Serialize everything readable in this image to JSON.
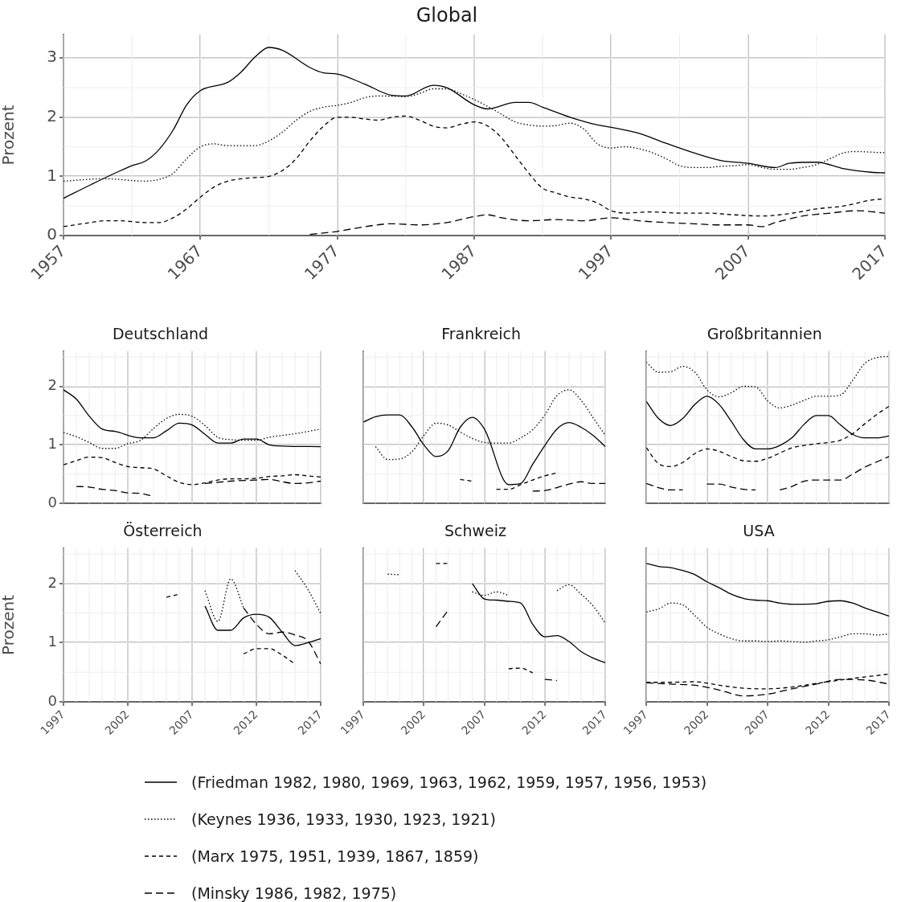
{
  "chart_data": [
    {
      "type": "line",
      "title": "Global",
      "ylabel": "Prozent",
      "xlim": [
        1957,
        2017
      ],
      "xticks": [
        1957,
        1967,
        1977,
        1987,
        1997,
        2007,
        2017
      ],
      "ylim": [
        0,
        3.4
      ],
      "yticks": [
        0,
        1,
        2,
        3
      ],
      "grid": true,
      "legend": "bottom",
      "series": [
        {
          "name": "(Friedman 1982, 1980, 1969, 1963, 1962, 1959, 1957, 1956, 1953)",
          "color": "#000000",
          "line_style": "solid",
          "x": [
            1957,
            1959,
            1961,
            1962,
            1963,
            1964,
            1965,
            1966,
            1967,
            1969,
            1970,
            1971,
            1972,
            1973,
            1975,
            1976,
            1977,
            1979,
            1981,
            1982,
            1984,
            1985,
            1987,
            1988,
            1990,
            1991,
            1992,
            1994,
            1996,
            1997,
            1999,
            2001,
            2003,
            2005,
            2007,
            2009,
            2010,
            2012,
            2014,
            2016,
            2017
          ],
          "values": [
            0.63,
            0.86,
            1.08,
            1.18,
            1.26,
            1.46,
            1.78,
            2.21,
            2.45,
            2.59,
            2.77,
            3.02,
            3.18,
            3.13,
            2.84,
            2.75,
            2.73,
            2.56,
            2.37,
            2.36,
            2.54,
            2.5,
            2.21,
            2.14,
            2.25,
            2.25,
            2.17,
            2.0,
            1.87,
            1.83,
            1.73,
            1.56,
            1.4,
            1.27,
            1.22,
            1.15,
            1.22,
            1.24,
            1.13,
            1.07,
            1.06
          ]
        },
        {
          "name": "(Keynes 1936, 1933, 1930, 1923, 1921)",
          "color": "#000000",
          "line_style": "dotted",
          "x": [
            1957,
            1960,
            1963,
            1964,
            1965,
            1966,
            1967,
            1968,
            1969,
            1971,
            1972,
            1973,
            1974,
            1975,
            1976,
            1977,
            1978,
            1979,
            1980,
            1982,
            1983,
            1984,
            1985,
            1986,
            1987,
            1988,
            1989,
            1990,
            1991,
            1992,
            1993,
            1994,
            1995,
            1996,
            1997,
            1998,
            1999,
            2000,
            2001,
            2002,
            2003,
            2004,
            2005,
            2006,
            2007,
            2008,
            2009,
            2010,
            2011,
            2012,
            2013,
            2014,
            2015,
            2016,
            2017
          ],
          "values": [
            0.92,
            0.96,
            0.92,
            0.95,
            1.05,
            1.3,
            1.5,
            1.55,
            1.52,
            1.52,
            1.6,
            1.75,
            1.95,
            2.1,
            2.17,
            2.2,
            2.25,
            2.33,
            2.36,
            2.35,
            2.4,
            2.48,
            2.48,
            2.4,
            2.3,
            2.18,
            2.05,
            1.92,
            1.87,
            1.85,
            1.86,
            1.9,
            1.8,
            1.55,
            1.48,
            1.5,
            1.47,
            1.4,
            1.3,
            1.18,
            1.15,
            1.15,
            1.17,
            1.18,
            1.2,
            1.15,
            1.12,
            1.12,
            1.15,
            1.2,
            1.3,
            1.4,
            1.42,
            1.41,
            1.4
          ]
        },
        {
          "name": "(Marx 1975, 1951, 1939, 1867, 1859)",
          "color": "#000000",
          "line_style": "dashed",
          "x": [
            1957,
            1959,
            1960,
            1961,
            1963,
            1964,
            1965,
            1966,
            1967,
            1968,
            1969,
            1970,
            1971,
            1972,
            1973,
            1974,
            1975,
            1976,
            1977,
            1978,
            1979,
            1980,
            1981,
            1982,
            1983,
            1984,
            1985,
            1986,
            1987,
            1988,
            1989,
            1990,
            1991,
            1992,
            1993,
            1994,
            1995,
            1996,
            1997,
            1998,
            2000,
            2002,
            2004,
            2006,
            2008,
            2010,
            2012,
            2014,
            2016,
            2017
          ],
          "values": [
            0.15,
            0.22,
            0.25,
            0.25,
            0.22,
            0.22,
            0.3,
            0.45,
            0.65,
            0.82,
            0.92,
            0.96,
            0.98,
            1.0,
            1.1,
            1.3,
            1.6,
            1.85,
            2.0,
            2.0,
            1.97,
            1.95,
            2.0,
            2.02,
            1.95,
            1.85,
            1.82,
            1.88,
            1.92,
            1.85,
            1.65,
            1.35,
            1.05,
            0.8,
            0.72,
            0.65,
            0.62,
            0.55,
            0.42,
            0.38,
            0.4,
            0.38,
            0.38,
            0.35,
            0.33,
            0.37,
            0.45,
            0.5,
            0.6,
            0.62
          ]
        },
        {
          "name": "(Minsky 1986, 1982, 1975)",
          "color": "#000000",
          "line_style": "longdash",
          "x": [
            1975,
            1977,
            1979,
            1981,
            1983,
            1985,
            1987,
            1988,
            1989,
            1991,
            1993,
            1995,
            1997,
            1999,
            2001,
            2003,
            2005,
            2007,
            2008,
            2009,
            2011,
            2013,
            2015,
            2017
          ],
          "values": [
            0.02,
            0.07,
            0.15,
            0.2,
            0.18,
            0.22,
            0.32,
            0.35,
            0.3,
            0.25,
            0.27,
            0.25,
            0.3,
            0.25,
            0.22,
            0.2,
            0.18,
            0.18,
            0.15,
            0.22,
            0.33,
            0.38,
            0.42,
            0.38
          ]
        }
      ]
    },
    {
      "type": "line",
      "title": "Deutschland",
      "xlim": [
        1997,
        2017
      ],
      "xticks": [
        1997,
        2002,
        2007,
        2012,
        2017
      ],
      "ylim": [
        0,
        2.6
      ],
      "yticks": [
        0,
        1,
        2
      ],
      "grid": true,
      "tick_labels": "y",
      "series": [
        {
          "color": "#000000",
          "line_style": "solid",
          "x": [
            1997,
            1998,
            1999,
            2000,
            2001,
            2003,
            2004,
            2005,
            2006,
            2007,
            2008,
            2009,
            2010,
            2011,
            2012,
            2013,
            2014,
            2017
          ],
          "values": [
            1.94,
            1.78,
            1.49,
            1.27,
            1.23,
            1.12,
            1.12,
            1.24,
            1.37,
            1.34,
            1.18,
            1.03,
            1.03,
            1.1,
            1.1,
            1.0,
            0.98,
            0.97
          ]
        },
        {
          "color": "#000000",
          "line_style": "dotted",
          "x": [
            1997,
            1998,
            1999,
            2000,
            2001,
            2002,
            2003,
            2004,
            2005,
            2006,
            2007,
            2008,
            2009,
            2010,
            2011,
            2012,
            2013,
            2014,
            2015,
            2016,
            2017
          ],
          "values": [
            1.21,
            1.14,
            1.04,
            0.94,
            0.94,
            1.02,
            1.08,
            1.28,
            1.45,
            1.52,
            1.49,
            1.33,
            1.13,
            1.09,
            1.08,
            1.08,
            1.13,
            1.16,
            1.19,
            1.23,
            1.27
          ]
        },
        {
          "color": "#000000",
          "line_style": "dashed",
          "x": [
            1997,
            1998,
            1999,
            2000,
            2001,
            2002,
            2003,
            2004,
            2005,
            2006,
            2007,
            2008,
            2009,
            2010,
            2011,
            2012,
            2013,
            2014,
            2015,
            2016,
            2017
          ],
          "values": [
            0.66,
            0.73,
            0.79,
            0.78,
            0.7,
            0.63,
            0.61,
            0.59,
            0.47,
            0.36,
            0.32,
            0.35,
            0.4,
            0.42,
            0.42,
            0.43,
            0.46,
            0.47,
            0.49,
            0.47,
            0.45
          ]
        },
        {
          "color": "#000000",
          "line_style": "longdash",
          "x": [
            1998,
            1999,
            2000,
            2001,
            2002,
            2003,
            2004,
            2006,
            2008,
            2010,
            2012,
            2013,
            2014,
            2015,
            2016,
            2017
          ],
          "values": [
            0.29,
            0.28,
            0.24,
            0.22,
            0.18,
            0.17,
            0.12,
            null,
            0.34,
            0.38,
            0.4,
            0.41,
            0.37,
            0.34,
            0.35,
            0.38
          ]
        }
      ]
    },
    {
      "type": "line",
      "title": "Frankreich",
      "xlim": [
        1997,
        2017
      ],
      "xticks": [
        1997,
        2002,
        2007,
        2012,
        2017
      ],
      "ylim": [
        0,
        2.6
      ],
      "yticks": [
        0,
        1,
        2
      ],
      "grid": true,
      "tick_labels": false,
      "series": [
        {
          "color": "#000000",
          "line_style": "solid",
          "x": [
            1997,
            1998,
            1999,
            2000,
            2001,
            2002,
            2003,
            2004,
            2005,
            2006,
            2007,
            2009,
            2010,
            2011,
            2012,
            2013,
            2014,
            2015,
            2016,
            2017
          ],
          "values": [
            1.39,
            1.48,
            1.51,
            1.51,
            1.31,
            1.0,
            0.8,
            0.9,
            1.3,
            1.47,
            1.27,
            0.32,
            0.34,
            0.67,
            0.99,
            1.27,
            1.38,
            1.3,
            1.16,
            0.97
          ]
        },
        {
          "color": "#000000",
          "line_style": "dotted",
          "x": [
            1998,
            1999,
            2000,
            2001,
            2002,
            2003,
            2004,
            2005,
            2006,
            2007,
            2008,
            2009,
            2010,
            2011,
            2012,
            2013,
            2014,
            2015,
            2016,
            2017
          ],
          "values": [
            0.97,
            0.75,
            0.76,
            0.88,
            1.16,
            1.37,
            1.34,
            1.22,
            1.11,
            1.04,
            1.03,
            1.03,
            1.12,
            1.26,
            1.51,
            1.84,
            1.94,
            1.76,
            1.46,
            1.16
          ]
        },
        {
          "color": "#000000",
          "line_style": "dashed",
          "x": [
            2005,
            2006,
            2007,
            2008,
            2009,
            2010,
            2011,
            2012,
            2013
          ],
          "values": [
            0.41,
            0.38,
            null,
            0.24,
            0.24,
            0.32,
            0.4,
            0.47,
            0.52
          ]
        },
        {
          "color": "#000000",
          "line_style": "longdash",
          "x": [
            2011,
            2012,
            2013,
            2014,
            2015,
            2016,
            2017
          ],
          "values": [
            0.21,
            0.22,
            0.27,
            0.33,
            0.37,
            0.34,
            0.34
          ]
        }
      ]
    },
    {
      "type": "line",
      "title": "Großbritannien",
      "xlim": [
        1997,
        2017
      ],
      "xticks": [
        1997,
        2002,
        2007,
        2012,
        2017
      ],
      "ylim": [
        0,
        2.6
      ],
      "yticks": [
        0,
        1,
        2
      ],
      "grid": true,
      "tick_labels": false,
      "series": [
        {
          "color": "#000000",
          "line_style": "solid",
          "x": [
            1997,
            1998,
            1999,
            2000,
            2001,
            2002,
            2003,
            2004,
            2005,
            2006,
            2007,
            2008,
            2009,
            2010,
            2011,
            2012,
            2013,
            2014,
            2015,
            2016,
            2017
          ],
          "values": [
            1.74,
            1.45,
            1.33,
            1.45,
            1.69,
            1.83,
            1.69,
            1.4,
            1.09,
            0.93,
            0.93,
            0.99,
            1.12,
            1.35,
            1.5,
            1.5,
            1.34,
            1.18,
            1.12,
            1.12,
            1.15
          ]
        },
        {
          "color": "#000000",
          "line_style": "dotted",
          "x": [
            1997,
            1998,
            1999,
            2000,
            2001,
            2002,
            2003,
            2004,
            2005,
            2006,
            2007,
            2008,
            2009,
            2010,
            2011,
            2012,
            2013,
            2014,
            2015,
            2016,
            2017
          ],
          "values": [
            2.41,
            2.24,
            2.25,
            2.34,
            2.24,
            1.94,
            1.82,
            1.89,
            2.0,
            1.99,
            1.75,
            1.63,
            1.68,
            1.76,
            1.83,
            1.83,
            1.85,
            2.1,
            2.39,
            2.49,
            2.51
          ]
        },
        {
          "color": "#000000",
          "line_style": "dashed",
          "x": [
            1997,
            1998,
            1999,
            2000,
            2001,
            2002,
            2003,
            2004,
            2005,
            2006,
            2007,
            2008,
            2009,
            2010,
            2011,
            2012,
            2013,
            2014,
            2015,
            2016,
            2017
          ],
          "values": [
            0.95,
            0.68,
            0.63,
            0.7,
            0.85,
            0.93,
            0.89,
            0.8,
            0.73,
            0.72,
            0.77,
            0.86,
            0.95,
            0.99,
            1.02,
            1.04,
            1.08,
            1.19,
            1.36,
            1.52,
            1.66
          ]
        },
        {
          "color": "#000000",
          "line_style": "longdash",
          "x": [
            1997,
            1998,
            1999,
            2000,
            2001,
            2002,
            2003,
            2004,
            2005,
            2006,
            2007,
            2008,
            2009,
            2010,
            2011,
            2012,
            2013,
            2014,
            2015,
            2016,
            2017
          ],
          "values": [
            0.34,
            0.27,
            0.23,
            0.23,
            null,
            0.33,
            0.33,
            0.28,
            0.24,
            0.23,
            null,
            0.23,
            0.29,
            0.38,
            0.4,
            0.4,
            0.4,
            0.5,
            0.62,
            0.71,
            0.8
          ]
        }
      ]
    },
    {
      "type": "line",
      "title": "Österreich",
      "ylabel": "Prozent",
      "xlim": [
        1997,
        2017
      ],
      "xticks": [
        1997,
        2002,
        2007,
        2012,
        2017
      ],
      "ylim": [
        0,
        2.6
      ],
      "yticks": [
        0,
        1,
        2
      ],
      "grid": true,
      "series": [
        {
          "color": "#000000",
          "line_style": "solid",
          "x": [
            2008,
            2009,
            2010,
            2011,
            2012,
            2013,
            2014,
            2015,
            2016,
            2017
          ],
          "values": [
            1.62,
            1.21,
            1.21,
            1.42,
            1.48,
            1.43,
            1.18,
            0.95,
            1.0,
            1.07
          ]
        },
        {
          "color": "#000000",
          "line_style": "dotted",
          "x": [
            2008,
            2009,
            2010,
            2011,
            2013,
            2015,
            2016,
            2017
          ],
          "values": [
            1.88,
            1.36,
            2.08,
            1.59,
            null,
            2.22,
            1.9,
            1.49
          ]
        },
        {
          "color": "#000000",
          "line_style": "dashed",
          "x": [
            2005,
            2006,
            2008,
            2011,
            2012,
            2013,
            2014,
            2015
          ],
          "values": [
            1.77,
            1.82,
            null,
            0.81,
            0.9,
            0.9,
            0.79,
            0.64
          ]
        },
        {
          "color": "#000000",
          "line_style": "longdash",
          "x": [
            2011,
            2012,
            2013,
            2014,
            2015,
            2016,
            2017
          ],
          "values": [
            1.59,
            1.31,
            1.15,
            1.18,
            1.13,
            1.03,
            0.64
          ]
        }
      ]
    },
    {
      "type": "line",
      "title": "Schweiz",
      "xlim": [
        1997,
        2017
      ],
      "xticks": [
        1997,
        2002,
        2007,
        2012,
        2017
      ],
      "ylim": [
        0,
        2.6
      ],
      "yticks": [
        0,
        1,
        2
      ],
      "grid": true,
      "tick_labels": "x",
      "series": [
        {
          "color": "#000000",
          "line_style": "solid",
          "x": [
            2006,
            2007,
            2008,
            2009,
            2010,
            2011,
            2012,
            2013,
            2014,
            2015,
            2016,
            2017
          ],
          "values": [
            2.0,
            1.74,
            1.72,
            1.7,
            1.67,
            1.31,
            1.1,
            1.12,
            1.02,
            0.85,
            0.74,
            0.66
          ]
        },
        {
          "color": "#000000",
          "line_style": "dotted",
          "x": [
            1999,
            2000,
            2003,
            2006,
            2007,
            2008,
            2009,
            2011,
            2013,
            2014,
            2015,
            2016,
            2017
          ],
          "values": [
            2.16,
            2.15,
            null,
            1.86,
            1.8,
            1.86,
            1.8,
            null,
            1.88,
            1.98,
            1.82,
            1.62,
            1.33
          ]
        },
        {
          "color": "#000000",
          "line_style": "dashed",
          "x": [
            2003,
            2004,
            2006,
            2009,
            2010,
            2011
          ],
          "values": [
            2.34,
            2.34,
            null,
            0.56,
            0.57,
            0.49
          ]
        },
        {
          "color": "#000000",
          "line_style": "longdash",
          "x": [
            2003,
            2004,
            2008,
            2012,
            2013
          ],
          "values": [
            1.27,
            1.55,
            null,
            0.38,
            0.36
          ]
        }
      ]
    },
    {
      "type": "line",
      "title": "USA",
      "xlim": [
        1997,
        2017
      ],
      "xticks": [
        1997,
        2002,
        2007,
        2012,
        2017
      ],
      "ylim": [
        0,
        2.6
      ],
      "yticks": [
        0,
        1,
        2
      ],
      "grid": true,
      "tick_labels": "x",
      "series": [
        {
          "color": "#000000",
          "line_style": "solid",
          "x": [
            1997,
            1998,
            1999,
            2000,
            2001,
            2002,
            2003,
            2004,
            2005,
            2006,
            2007,
            2008,
            2009,
            2010,
            2011,
            2012,
            2013,
            2014,
            2015,
            2016,
            2017
          ],
          "values": [
            2.34,
            2.29,
            2.27,
            2.22,
            2.15,
            2.03,
            1.93,
            1.82,
            1.75,
            1.72,
            1.71,
            1.67,
            1.65,
            1.65,
            1.66,
            1.7,
            1.71,
            1.67,
            1.59,
            1.52,
            1.45
          ]
        },
        {
          "color": "#000000",
          "line_style": "dotted",
          "x": [
            1997,
            1998,
            1999,
            2000,
            2001,
            2002,
            2003,
            2004,
            2005,
            2006,
            2007,
            2008,
            2009,
            2010,
            2011,
            2012,
            2013,
            2014,
            2015,
            2016,
            2017
          ],
          "values": [
            1.52,
            1.57,
            1.67,
            1.64,
            1.46,
            1.26,
            1.15,
            1.07,
            1.03,
            1.03,
            1.02,
            1.03,
            1.02,
            1.01,
            1.03,
            1.05,
            1.1,
            1.15,
            1.15,
            1.13,
            1.15
          ]
        },
        {
          "color": "#000000",
          "line_style": "dashed",
          "x": [
            1997,
            1999,
            2001,
            2003,
            2005,
            2007,
            2009,
            2011,
            2013,
            2015,
            2017
          ],
          "values": [
            0.33,
            0.33,
            0.34,
            0.28,
            0.23,
            0.22,
            0.25,
            0.31,
            0.37,
            0.42,
            0.47
          ]
        },
        {
          "color": "#000000",
          "line_style": "longdash",
          "x": [
            1997,
            1999,
            2001,
            2003,
            2005,
            2007,
            2009,
            2011,
            2013,
            2015,
            2017
          ],
          "values": [
            0.32,
            0.3,
            0.28,
            0.2,
            0.1,
            0.13,
            0.22,
            0.3,
            0.38,
            0.37,
            0.3
          ]
        }
      ]
    }
  ]
}
